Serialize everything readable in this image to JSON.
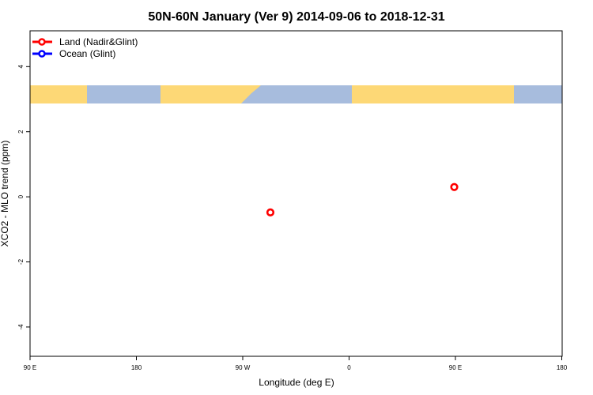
{
  "chart_data": {
    "type": "scatter",
    "title": "50N-60N January (Ver 9)   2014-09-06 to 2018-12-31",
    "xlabel": "Longitude (deg E)",
    "ylabel": "XCO2 - MLO trend (ppm)",
    "xlim": [
      90,
      450
    ],
    "ylim": [
      -4.9,
      5.1
    ],
    "x_ticks": [
      {
        "value": 90,
        "label": "90 E"
      },
      {
        "value": 180,
        "label": "180"
      },
      {
        "value": 270,
        "label": "90 W"
      },
      {
        "value": 360,
        "label": "0"
      },
      {
        "value": 450,
        "label": "90 E"
      },
      {
        "value": 540,
        "label": "180"
      }
    ],
    "y_ticks": [
      -4,
      -2,
      0,
      2,
      4
    ],
    "legend_position": "top-left",
    "series": [
      {
        "name": "Land (Nadir&Glint)",
        "color": "#ff0000",
        "points": [
          {
            "x": 252.6,
            "y": -0.48
          },
          {
            "x": 377,
            "y": 0.3
          }
        ]
      },
      {
        "name": "Ocean (Glint)",
        "color": "#0000ff",
        "points": []
      }
    ],
    "map_strip": {
      "lat_range": "50N-60N",
      "land_color": "#fdd876",
      "ocean_color": "#a7bcdd"
    }
  }
}
